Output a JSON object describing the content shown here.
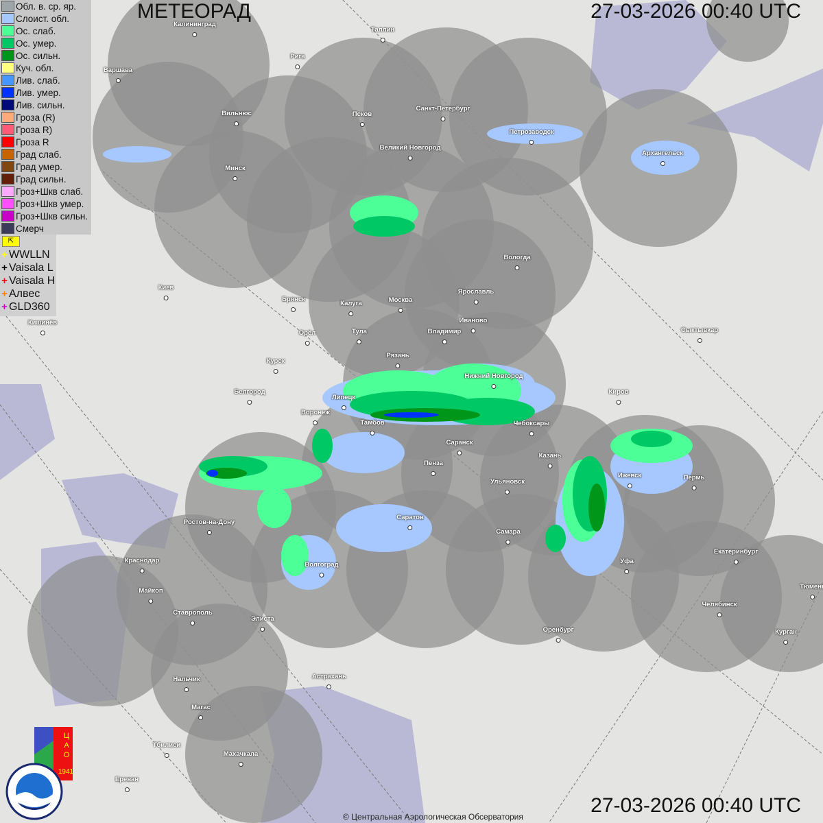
{
  "header": {
    "title": "МЕТЕОРАД",
    "timestamp_top": "27-03-2026  00:40 UTC",
    "timestamp_bottom": "27-03-2026  00:40 UTC"
  },
  "legend": {
    "items": [
      {
        "label": "Обл. в. ср. яр.",
        "color": "#9ea6aa"
      },
      {
        "label": "Слоист. обл.",
        "color": "#a6c8ff"
      },
      {
        "label": "Ос. слаб.",
        "color": "#4cff96"
      },
      {
        "label": "Ос. умер.",
        "color": "#00c864"
      },
      {
        "label": "Ос. сильн.",
        "color": "#009619"
      },
      {
        "label": "Куч. обл.",
        "color": "#ffff80"
      },
      {
        "label": "Лив. слаб.",
        "color": "#4696ff"
      },
      {
        "label": "Лив. умер.",
        "color": "#0032ff"
      },
      {
        "label": "Лив. сильн.",
        "color": "#000a78"
      },
      {
        "label": "Гроза (R)",
        "color": "#ffaa78"
      },
      {
        "label": "Гроза R)",
        "color": "#ff5a78"
      },
      {
        "label": "Гроза R",
        "color": "#ff0000"
      },
      {
        "label": "Град слаб.",
        "color": "#c86400"
      },
      {
        "label": "Град умер.",
        "color": "#82460f"
      },
      {
        "label": "Град сильн.",
        "color": "#641e0a"
      },
      {
        "label": "Гроз+Шкв слаб.",
        "color": "#ffaaff"
      },
      {
        "label": "Гроз+Шкв умер.",
        "color": "#ff50ff"
      },
      {
        "label": "Гроз+Шкв сильн.",
        "color": "#c800c8"
      },
      {
        "label": "Смерч",
        "color": "#3c3c5a"
      }
    ]
  },
  "lightning": {
    "toggle_icon": "cursor-arrow-icon",
    "sources": [
      {
        "label": "WWLLN",
        "color": "#ffff00"
      },
      {
        "label": "Vaisala L",
        "color": "#000000"
      },
      {
        "label": "Vaisala H",
        "color": "#ff0000"
      },
      {
        "label": "Алвес",
        "color": "#ff8000"
      },
      {
        "label": "GLD360",
        "color": "#c800c8"
      }
    ]
  },
  "cities": [
    "Калининград",
    "Таллин",
    "Рига",
    "Варшава",
    "Вильнюс",
    "Псков",
    "Санкт-Петербург",
    "Петрозаводск",
    "Архангельск",
    "Великий Новгород",
    "Минск",
    "Вологда",
    "Киев",
    "Брянск",
    "Калуга",
    "Москва",
    "Ярославль",
    "Иваново",
    "Кишинёв",
    "Тула",
    "Орёл",
    "Владимир",
    "Сыктывкар",
    "Рязань",
    "Курск",
    "Нижний Новгород",
    "Белгород",
    "Киров",
    "Липецк",
    "Воронеж",
    "Тамбов",
    "Чебоксары",
    "Саранск",
    "Казань",
    "Пенза",
    "Ижевск",
    "Пермь",
    "Ульяновск",
    "Ростов-на-Дону",
    "Саратов",
    "Самара",
    "Екатеринбург",
    "Краснодар",
    "Уфа",
    "Волгоград",
    "Майкоп",
    "Тюмень",
    "Челябинск",
    "Ставрополь",
    "Элиста",
    "Оренбург",
    "Курган",
    "Нальчик",
    "Астрахань",
    "Магас",
    "Тбилиси",
    "Махачкала",
    "Ереван"
  ],
  "logos": {
    "cao": "ЦАО 1941",
    "roshydromet": "РОСГИДРОМЕТ ROSHYDROMET"
  },
  "footer": {
    "copyright": "© Центральная Аэрологическая Обсерватория"
  }
}
